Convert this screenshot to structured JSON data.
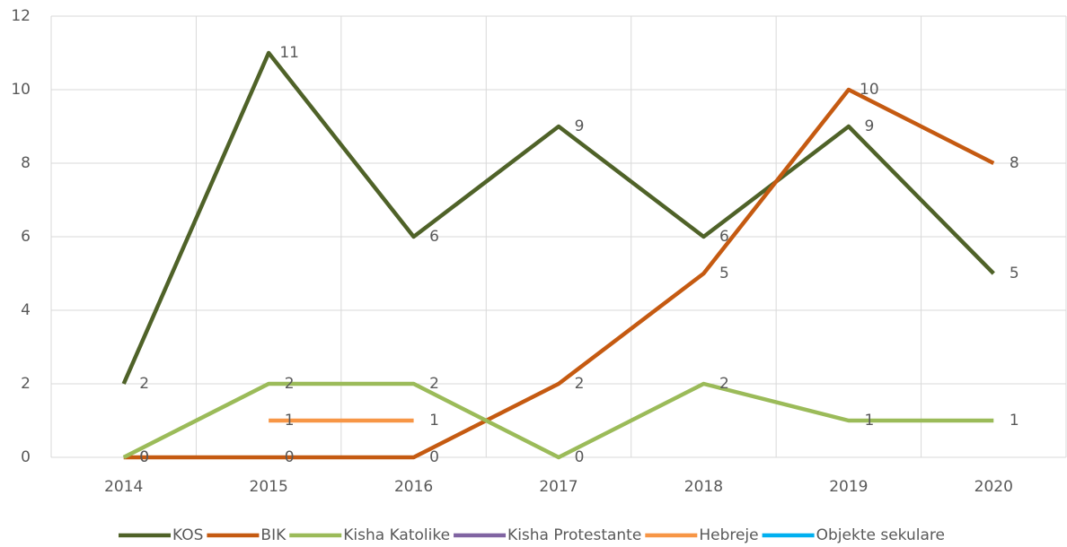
{
  "chart_data": {
    "type": "line",
    "categories": [
      "2014",
      "2015",
      "2016",
      "2017",
      "2018",
      "2019",
      "2020"
    ],
    "series": [
      {
        "name": "KOS",
        "color": "#4f6228",
        "values": [
          2,
          11,
          6,
          9,
          6,
          9,
          5
        ]
      },
      {
        "name": "BIK",
        "color": "#c55a11",
        "values": [
          0,
          0,
          0,
          2,
          5,
          10,
          8
        ]
      },
      {
        "name": "Kisha Katolike",
        "color": "#9bbb59",
        "values": [
          0,
          2,
          2,
          0,
          2,
          1,
          1
        ]
      },
      {
        "name": "Kisha Protestante",
        "color": "#8064a2",
        "values": [
          null,
          null,
          null,
          null,
          null,
          null,
          null
        ]
      },
      {
        "name": "Hebreje",
        "color": "#f79646",
        "values": [
          null,
          1,
          1,
          null,
          null,
          null,
          null
        ]
      },
      {
        "name": "Objekte sekulare",
        "color": "#00b0f0",
        "values": [
          null,
          null,
          null,
          null,
          null,
          null,
          null
        ]
      }
    ],
    "ylim": [
      0,
      12
    ],
    "yticks": [
      0,
      2,
      4,
      6,
      8,
      10,
      12
    ],
    "grid": true,
    "legend": "bottom"
  }
}
